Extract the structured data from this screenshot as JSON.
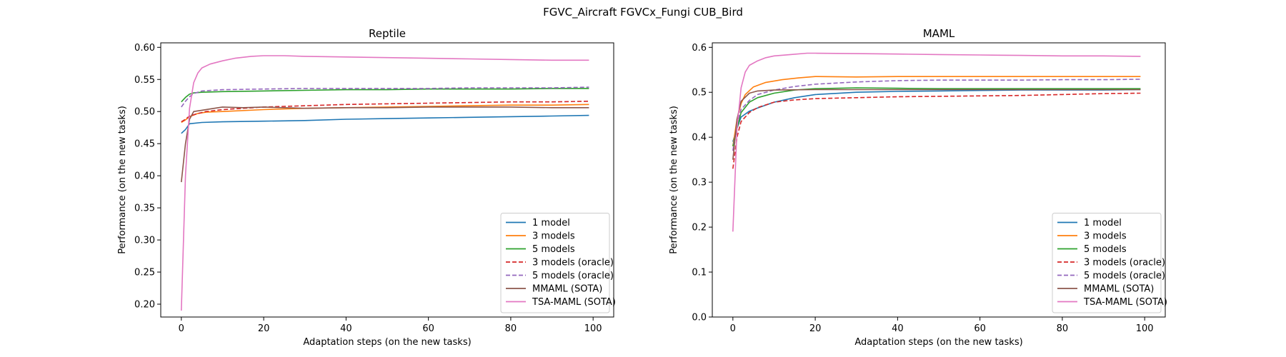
{
  "suptitle": "FGVC_Aircraft FGVCx_Fungi CUB_Bird",
  "colors": {
    "1 model": "#1f77b4",
    "3 models": "#ff7f0e",
    "5 models": "#2ca02c",
    "3 models (oracle)": "#d62728",
    "5 models (oracle)": "#9467bd",
    "MMAML (SOTA)": "#8c564b",
    "TSA-MAML (SOTA)": "#e377c2"
  },
  "chart_data": [
    {
      "type": "line",
      "title": "Reptile",
      "xlabel": "Adaptation steps (on the new tasks)",
      "ylabel": "Performance (on the new tasks)",
      "xlim": [
        -5,
        105
      ],
      "ylim": [
        0.18,
        0.607
      ],
      "xticks": [
        0,
        20,
        40,
        60,
        80,
        100
      ],
      "yticks": [
        0.2,
        0.25,
        0.3,
        0.35,
        0.4,
        0.45,
        0.5,
        0.55,
        0.6
      ],
      "ytick_labels": [
        "0.20",
        "0.25",
        "0.30",
        "0.35",
        "0.40",
        "0.45",
        "0.50",
        "0.55",
        "0.60"
      ],
      "legend_position": "lower-right",
      "series": [
        {
          "name": "1 model",
          "dash": false,
          "points": [
            [
              0,
              0.466
            ],
            [
              1,
              0.472
            ],
            [
              2,
              0.481
            ],
            [
              5,
              0.483
            ],
            [
              10,
              0.484
            ],
            [
              20,
              0.485
            ],
            [
              30,
              0.486
            ],
            [
              40,
              0.488
            ],
            [
              50,
              0.489
            ],
            [
              60,
              0.49
            ],
            [
              70,
              0.491
            ],
            [
              80,
              0.492
            ],
            [
              90,
              0.493
            ],
            [
              99,
              0.494
            ]
          ]
        },
        {
          "name": "3 models",
          "dash": false,
          "points": [
            [
              0,
              0.483
            ],
            [
              1,
              0.487
            ],
            [
              2,
              0.492
            ],
            [
              4,
              0.497
            ],
            [
              6,
              0.499
            ],
            [
              10,
              0.5
            ],
            [
              20,
              0.503
            ],
            [
              30,
              0.505
            ],
            [
              40,
              0.506
            ],
            [
              50,
              0.507
            ],
            [
              60,
              0.508
            ],
            [
              70,
              0.509
            ],
            [
              80,
              0.51
            ],
            [
              90,
              0.51
            ],
            [
              99,
              0.511
            ]
          ]
        },
        {
          "name": "5 models",
          "dash": false,
          "points": [
            [
              0,
              0.515
            ],
            [
              1,
              0.522
            ],
            [
              2,
              0.527
            ],
            [
              3,
              0.529
            ],
            [
              5,
              0.53
            ],
            [
              10,
              0.531
            ],
            [
              20,
              0.532
            ],
            [
              30,
              0.533
            ],
            [
              40,
              0.534
            ],
            [
              50,
              0.534
            ],
            [
              60,
              0.535
            ],
            [
              70,
              0.535
            ],
            [
              80,
              0.535
            ],
            [
              90,
              0.536
            ],
            [
              99,
              0.536
            ]
          ]
        },
        {
          "name": "3 models (oracle)",
          "dash": true,
          "points": [
            [
              0,
              0.484
            ],
            [
              1,
              0.488
            ],
            [
              2,
              0.493
            ],
            [
              4,
              0.497
            ],
            [
              6,
              0.5
            ],
            [
              10,
              0.503
            ],
            [
              20,
              0.507
            ],
            [
              30,
              0.509
            ],
            [
              40,
              0.511
            ],
            [
              50,
              0.512
            ],
            [
              60,
              0.513
            ],
            [
              70,
              0.514
            ],
            [
              80,
              0.515
            ],
            [
              90,
              0.515
            ],
            [
              99,
              0.516
            ]
          ]
        },
        {
          "name": "5 models (oracle)",
          "dash": true,
          "points": [
            [
              0,
              0.507
            ],
            [
              1,
              0.516
            ],
            [
              2,
              0.523
            ],
            [
              3,
              0.528
            ],
            [
              5,
              0.532
            ],
            [
              10,
              0.534
            ],
            [
              20,
              0.535
            ],
            [
              30,
              0.536
            ],
            [
              40,
              0.536
            ],
            [
              50,
              0.536
            ],
            [
              60,
              0.536
            ],
            [
              70,
              0.537
            ],
            [
              80,
              0.537
            ],
            [
              90,
              0.537
            ],
            [
              99,
              0.538
            ]
          ]
        },
        {
          "name": "MMAML (SOTA)",
          "dash": false,
          "points": [
            [
              0,
              0.39
            ],
            [
              1,
              0.45
            ],
            [
              2,
              0.488
            ],
            [
              3,
              0.5
            ],
            [
              5,
              0.502
            ],
            [
              8,
              0.505
            ],
            [
              10,
              0.507
            ],
            [
              15,
              0.506
            ],
            [
              20,
              0.507
            ],
            [
              30,
              0.505
            ],
            [
              40,
              0.506
            ],
            [
              50,
              0.506
            ],
            [
              60,
              0.507
            ],
            [
              70,
              0.507
            ],
            [
              80,
              0.507
            ],
            [
              90,
              0.506
            ],
            [
              99,
              0.506
            ]
          ]
        },
        {
          "name": "TSA-MAML (SOTA)",
          "dash": false,
          "points": [
            [
              0,
              0.19
            ],
            [
              1,
              0.4
            ],
            [
              2,
              0.505
            ],
            [
              3,
              0.545
            ],
            [
              4,
              0.56
            ],
            [
              5,
              0.568
            ],
            [
              7,
              0.574
            ],
            [
              10,
              0.579
            ],
            [
              13,
              0.583
            ],
            [
              17,
              0.586
            ],
            [
              20,
              0.587
            ],
            [
              25,
              0.587
            ],
            [
              30,
              0.586
            ],
            [
              40,
              0.585
            ],
            [
              50,
              0.584
            ],
            [
              60,
              0.583
            ],
            [
              70,
              0.582
            ],
            [
              80,
              0.581
            ],
            [
              90,
              0.58
            ],
            [
              99,
              0.58
            ]
          ]
        }
      ]
    },
    {
      "type": "line",
      "title": "MAML",
      "xlabel": "Adaptation steps (on the new tasks)",
      "ylabel": "Performance (on the new tasks)",
      "xlim": [
        -5,
        105
      ],
      "ylim": [
        0.0,
        0.61
      ],
      "xticks": [
        0,
        20,
        40,
        60,
        80,
        100
      ],
      "yticks": [
        0.0,
        0.1,
        0.2,
        0.3,
        0.4,
        0.5,
        0.6
      ],
      "ytick_labels": [
        "0.0",
        "0.1",
        "0.2",
        "0.3",
        "0.4",
        "0.5",
        "0.6"
      ],
      "legend_position": "lower-right",
      "series": [
        {
          "name": "1 model",
          "dash": false,
          "points": [
            [
              0,
              0.39
            ],
            [
              1,
              0.42
            ],
            [
              2,
              0.445
            ],
            [
              4,
              0.458
            ],
            [
              6,
              0.465
            ],
            [
              10,
              0.478
            ],
            [
              15,
              0.488
            ],
            [
              20,
              0.495
            ],
            [
              30,
              0.5
            ],
            [
              40,
              0.502
            ],
            [
              50,
              0.503
            ],
            [
              60,
              0.504
            ],
            [
              70,
              0.505
            ],
            [
              80,
              0.505
            ],
            [
              90,
              0.505
            ],
            [
              99,
              0.506
            ]
          ]
        },
        {
          "name": "3 models",
          "dash": false,
          "points": [
            [
              0,
              0.38
            ],
            [
              1,
              0.44
            ],
            [
              2,
              0.475
            ],
            [
              3,
              0.495
            ],
            [
              5,
              0.512
            ],
            [
              8,
              0.522
            ],
            [
              12,
              0.528
            ],
            [
              16,
              0.532
            ],
            [
              20,
              0.535
            ],
            [
              30,
              0.534
            ],
            [
              40,
              0.535
            ],
            [
              50,
              0.535
            ],
            [
              60,
              0.535
            ],
            [
              70,
              0.535
            ],
            [
              80,
              0.535
            ],
            [
              90,
              0.535
            ],
            [
              99,
              0.535
            ]
          ]
        },
        {
          "name": "5 models",
          "dash": false,
          "points": [
            [
              0,
              0.38
            ],
            [
              1,
              0.42
            ],
            [
              2,
              0.455
            ],
            [
              4,
              0.478
            ],
            [
              6,
              0.488
            ],
            [
              10,
              0.498
            ],
            [
              15,
              0.505
            ],
            [
              20,
              0.508
            ],
            [
              30,
              0.51
            ],
            [
              40,
              0.509
            ],
            [
              50,
              0.508
            ],
            [
              60,
              0.508
            ],
            [
              70,
              0.508
            ],
            [
              80,
              0.508
            ],
            [
              90,
              0.508
            ],
            [
              99,
              0.508
            ]
          ]
        },
        {
          "name": "3 models (oracle)",
          "dash": true,
          "points": [
            [
              0,
              0.33
            ],
            [
              1,
              0.4
            ],
            [
              2,
              0.435
            ],
            [
              4,
              0.455
            ],
            [
              6,
              0.466
            ],
            [
              10,
              0.478
            ],
            [
              15,
              0.483
            ],
            [
              20,
              0.486
            ],
            [
              30,
              0.488
            ],
            [
              40,
              0.49
            ],
            [
              50,
              0.491
            ],
            [
              60,
              0.492
            ],
            [
              70,
              0.493
            ],
            [
              80,
              0.495
            ],
            [
              90,
              0.497
            ],
            [
              99,
              0.498
            ]
          ]
        },
        {
          "name": "5 models (oracle)",
          "dash": true,
          "points": [
            [
              0,
              0.37
            ],
            [
              1,
              0.43
            ],
            [
              2,
              0.462
            ],
            [
              4,
              0.482
            ],
            [
              6,
              0.495
            ],
            [
              10,
              0.505
            ],
            [
              15,
              0.513
            ],
            [
              20,
              0.518
            ],
            [
              30,
              0.523
            ],
            [
              40,
              0.526
            ],
            [
              50,
              0.527
            ],
            [
              60,
              0.527
            ],
            [
              70,
              0.527
            ],
            [
              80,
              0.528
            ],
            [
              90,
              0.528
            ],
            [
              99,
              0.529
            ]
          ]
        },
        {
          "name": "MMAML (SOTA)",
          "dash": false,
          "points": [
            [
              0,
              0.35
            ],
            [
              1,
              0.44
            ],
            [
              2,
              0.48
            ],
            [
              4,
              0.498
            ],
            [
              6,
              0.503
            ],
            [
              10,
              0.505
            ],
            [
              20,
              0.506
            ],
            [
              30,
              0.506
            ],
            [
              40,
              0.506
            ],
            [
              50,
              0.506
            ],
            [
              60,
              0.506
            ],
            [
              70,
              0.506
            ],
            [
              80,
              0.506
            ],
            [
              90,
              0.506
            ],
            [
              99,
              0.506
            ]
          ]
        },
        {
          "name": "TSA-MAML (SOTA)",
          "dash": false,
          "points": [
            [
              0,
              0.19
            ],
            [
              1,
              0.42
            ],
            [
              2,
              0.51
            ],
            [
              3,
              0.545
            ],
            [
              4,
              0.56
            ],
            [
              6,
              0.57
            ],
            [
              8,
              0.577
            ],
            [
              10,
              0.581
            ],
            [
              14,
              0.584
            ],
            [
              18,
              0.587
            ],
            [
              20,
              0.587
            ],
            [
              30,
              0.586
            ],
            [
              40,
              0.585
            ],
            [
              50,
              0.584
            ],
            [
              60,
              0.583
            ],
            [
              70,
              0.582
            ],
            [
              80,
              0.581
            ],
            [
              90,
              0.581
            ],
            [
              99,
              0.58
            ]
          ]
        }
      ]
    }
  ]
}
